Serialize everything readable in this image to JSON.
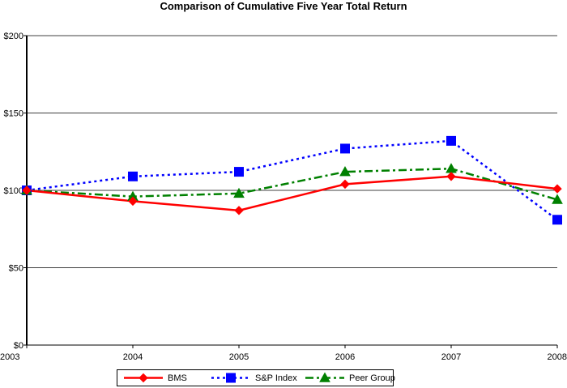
{
  "chart_data": {
    "type": "line",
    "title": "Comparison of Cumulative Five Year Total Return",
    "xlabel": "",
    "ylabel": "",
    "categories": [
      "2003",
      "2004",
      "2005",
      "2006",
      "2007",
      "2008"
    ],
    "ylim": [
      0,
      200
    ],
    "yticks": [
      0,
      50,
      100,
      150,
      200
    ],
    "ytick_labels": [
      "$0",
      "$50",
      "$100",
      "$150",
      "$200"
    ],
    "grid": true,
    "legend_position": "bottom",
    "series": [
      {
        "name": "BMS",
        "values": [
          100,
          93,
          87,
          104,
          109,
          101
        ],
        "color": "#ff0000",
        "dash": "solid",
        "marker": "diamond"
      },
      {
        "name": "S&P Index",
        "values": [
          100,
          109,
          112,
          127,
          132,
          81
        ],
        "color": "#0000ff",
        "dash": "dotted",
        "marker": "square"
      },
      {
        "name": "Peer Group",
        "values": [
          100,
          96,
          98,
          112,
          114,
          94
        ],
        "color": "#008000",
        "dash": "dash-dot",
        "marker": "triangle"
      }
    ]
  }
}
